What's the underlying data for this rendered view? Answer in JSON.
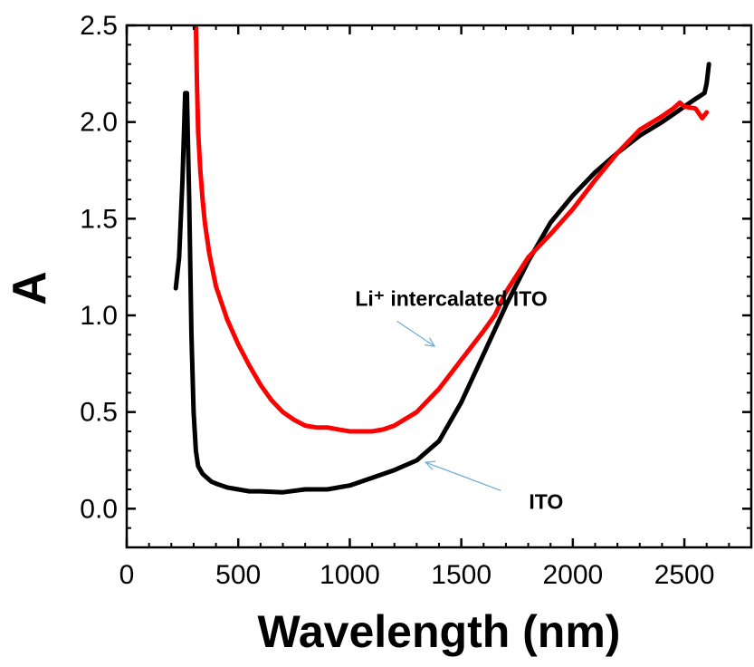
{
  "chart_data": {
    "type": "line",
    "xlabel": "Wavelength (nm)",
    "ylabel": "A",
    "xlim": [
      0,
      2800
    ],
    "ylim": [
      -0.2,
      2.5
    ],
    "x_ticks": [
      0,
      500,
      1000,
      1500,
      2000,
      2500
    ],
    "x_tick_labels": [
      "0",
      "500",
      "1000",
      "1500",
      "2000",
      "2500"
    ],
    "y_ticks": [
      0.0,
      0.5,
      1.0,
      1.5,
      2.0,
      2.5
    ],
    "y_tick_labels": [
      "0.0",
      "0.5",
      "1.0",
      "1.5",
      "2.0",
      "2.5"
    ],
    "grid": false,
    "series": [
      {
        "color": "#000000",
        "x": [
          220,
          235,
          250,
          262,
          270,
          280,
          290,
          300,
          310,
          320,
          340,
          360,
          380,
          400,
          450,
          500,
          550,
          600,
          700,
          800,
          900,
          1000,
          1100,
          1200,
          1300,
          1400,
          1500,
          1600,
          1700,
          1800,
          1900,
          2000,
          2100,
          2200,
          2300,
          2400,
          2500,
          2550,
          2590,
          2600,
          2610
        ],
        "y": [
          1.14,
          1.3,
          1.7,
          2.15,
          2.15,
          1.6,
          0.9,
          0.5,
          0.3,
          0.22,
          0.18,
          0.16,
          0.14,
          0.13,
          0.11,
          0.1,
          0.09,
          0.09,
          0.085,
          0.1,
          0.1,
          0.12,
          0.16,
          0.2,
          0.25,
          0.35,
          0.55,
          0.8,
          1.05,
          1.28,
          1.48,
          1.62,
          1.74,
          1.84,
          1.93,
          2.0,
          2.08,
          2.12,
          2.15,
          2.2,
          2.3
        ]
      },
      {
        "color": "#ff0000",
        "x": [
          310,
          315,
          320,
          330,
          340,
          350,
          370,
          400,
          450,
          500,
          550,
          600,
          650,
          700,
          750,
          800,
          850,
          900,
          950,
          1000,
          1050,
          1100,
          1150,
          1200,
          1300,
          1400,
          1500,
          1600,
          1650,
          1700,
          1800,
          1900,
          2000,
          2100,
          2200,
          2300,
          2400,
          2450,
          2480,
          2500,
          2550,
          2580,
          2600
        ],
        "y": [
          2.5,
          2.2,
          1.95,
          1.75,
          1.6,
          1.48,
          1.32,
          1.15,
          0.98,
          0.85,
          0.74,
          0.64,
          0.56,
          0.5,
          0.46,
          0.43,
          0.42,
          0.42,
          0.41,
          0.4,
          0.4,
          0.4,
          0.41,
          0.43,
          0.5,
          0.62,
          0.77,
          0.92,
          1.0,
          1.12,
          1.3,
          1.42,
          1.55,
          1.7,
          1.84,
          1.96,
          2.03,
          2.07,
          2.1,
          2.08,
          2.07,
          2.02,
          2.05
        ]
      }
    ],
    "annotations": [
      {
        "text": "Li⁺ intercalated ITO",
        "x": 1455,
        "y": 1.05,
        "arrow_to": [
          1380,
          0.84
        ],
        "arrow_color": "#6baed6"
      },
      {
        "text": "ITO",
        "x": 1880,
        "y": 0.0,
        "arrow_to": [
          1340,
          0.24
        ],
        "arrow_color": "#6baed6"
      }
    ]
  }
}
